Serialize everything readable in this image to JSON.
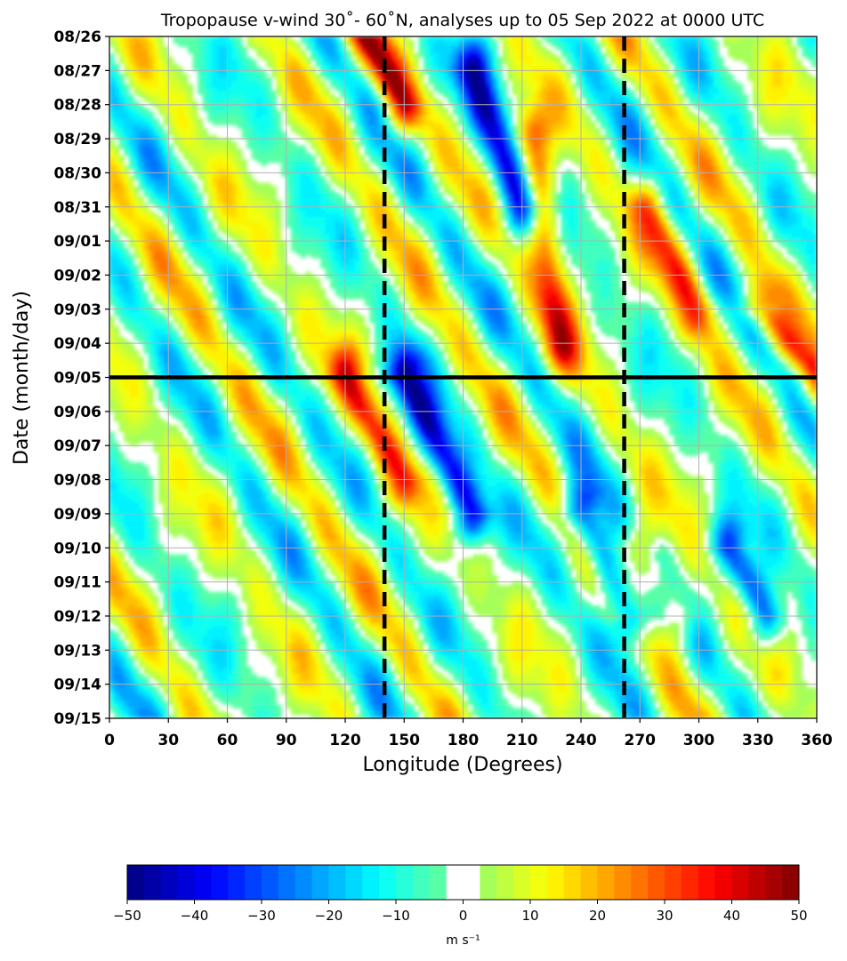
{
  "chart_data": {
    "type": "heatmap",
    "title": "Tropopause v-wind 30˚- 60˚N, analyses up to 05 Sep 2022 at 0000 UTC",
    "xlabel": "Longitude (Degrees)",
    "ylabel": "Date (month/day)",
    "xlim": [
      0,
      360
    ],
    "x_ticks": [
      "0",
      "30",
      "60",
      "90",
      "120",
      "150",
      "180",
      "210",
      "240",
      "270",
      "300",
      "330",
      "360"
    ],
    "y_ticks": [
      "08/26",
      "08/27",
      "08/28",
      "08/29",
      "08/30",
      "08/31",
      "09/01",
      "09/02",
      "09/03",
      "09/04",
      "09/05",
      "09/06",
      "09/07",
      "09/08",
      "09/09",
      "09/10",
      "09/11",
      "09/12",
      "09/13",
      "09/14",
      "09/15"
    ],
    "grid": true,
    "colorbar": {
      "ticks": [
        "−50",
        "−40",
        "−30",
        "−20",
        "−10",
        "0",
        "10",
        "20",
        "30",
        "40",
        "50"
      ],
      "label": "m s⁻¹",
      "range": [
        -50,
        50
      ],
      "level_step": 2.5,
      "white_band": [
        -2.5,
        2.5
      ]
    },
    "reference_lines": {
      "analysis_time": "09/05",
      "dashed_longitudes": [
        140,
        262
      ]
    },
    "features": [
      {
        "lon_start": 130,
        "date_start": "08/26",
        "lon_end": 150,
        "date_end": "08/28",
        "v": 35
      },
      {
        "lon_start": 120,
        "date_start": "09/05",
        "lon_end": 150,
        "date_end": "09/08",
        "v": 30
      },
      {
        "lon_start": 150,
        "date_start": "09/05",
        "lon_end": 185,
        "date_end": "09/09",
        "v": -42
      },
      {
        "lon_start": 185,
        "date_start": "08/27",
        "lon_end": 210,
        "date_end": "08/31",
        "v": -38
      },
      {
        "lon_start": 215,
        "date_start": "08/29",
        "lon_end": 230,
        "date_end": "09/04",
        "v": 30
      },
      {
        "lon_start": 240,
        "date_start": "09/09",
        "lon_end": 265,
        "date_end": "09/12",
        "v": -38
      },
      {
        "lon_start": 330,
        "date_start": "09/03",
        "lon_end": 360,
        "date_end": "09/05",
        "v": 28
      },
      {
        "lon_start": 275,
        "date_start": "08/31",
        "lon_end": 300,
        "date_end": "09/03",
        "v": 25
      },
      {
        "lon_start": 270,
        "date_start": "09/10",
        "lon_end": 290,
        "date_end": "09/12",
        "v": 20
      },
      {
        "lon_start": 315,
        "date_start": "09/10",
        "lon_end": 335,
        "date_end": "09/12",
        "v": -30
      }
    ]
  }
}
